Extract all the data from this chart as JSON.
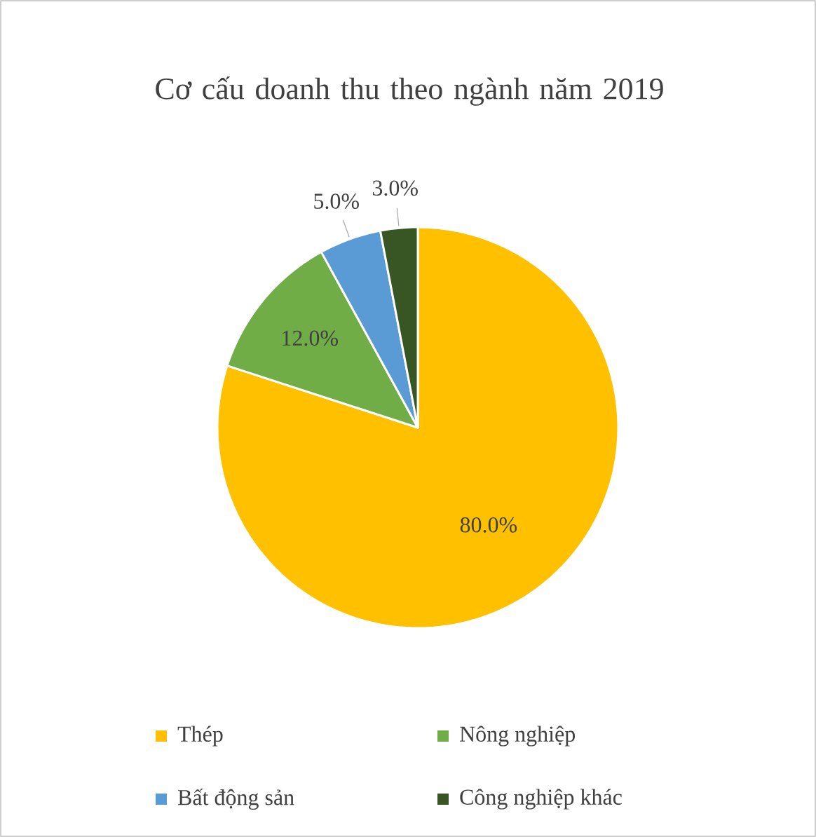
{
  "chart_data": {
    "type": "pie",
    "title": "Cơ cấu doanh thu theo ngành năm 2019",
    "categories": [
      "Thép",
      "Nông nghiệp",
      "Bất động sản",
      "Công nghiệp khác"
    ],
    "values": [
      80,
      12,
      5,
      3
    ],
    "colors": [
      "#ffc000",
      "#70ad47",
      "#5b9bd5",
      "#375623"
    ],
    "value_labels": [
      "80.0%",
      "12.0%",
      "5.0%",
      "3.0%"
    ],
    "legend": "bottom"
  }
}
